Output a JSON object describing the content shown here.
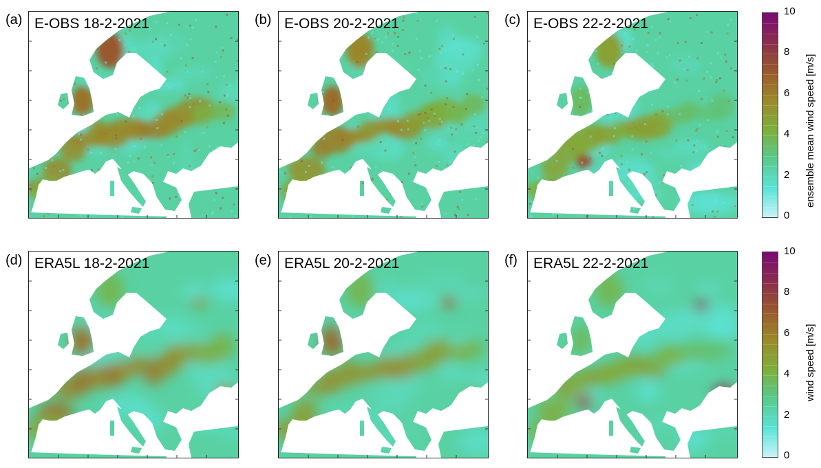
{
  "panels": [
    {
      "letter": "(a)",
      "title": "E-OBS 18-2-2021",
      "dataset": "E-OBS",
      "variant": 0
    },
    {
      "letter": "(b)",
      "title": "E-OBS 20-2-2021",
      "dataset": "E-OBS",
      "variant": 1
    },
    {
      "letter": "(c)",
      "title": "E-OBS 22-2-2021",
      "dataset": "E-OBS",
      "variant": 2
    },
    {
      "letter": "(d)",
      "title": "ERA5L 18-2-2021",
      "dataset": "ERA5L",
      "variant": 0
    },
    {
      "letter": "(e)",
      "title": "ERA5L 20-2-2021",
      "dataset": "ERA5L",
      "variant": 1
    },
    {
      "letter": "(f)",
      "title": "ERA5L 22-2-2021",
      "dataset": "ERA5L",
      "variant": 2
    }
  ],
  "colorbars": [
    {
      "label": "ensemble mean wind speed [m/s]",
      "ticks": [
        "10",
        "8",
        "6",
        "4",
        "2",
        "0"
      ],
      "min": 0,
      "max": 10
    },
    {
      "label": "wind speed [m/s]",
      "ticks": [
        "10",
        "8",
        "6",
        "4",
        "2",
        "0"
      ],
      "min": 0,
      "max": 10
    }
  ],
  "colors": {
    "scale": [
      "#c8f2f8",
      "#5ce3d8",
      "#58c98a",
      "#7fae3a",
      "#9a8a2a",
      "#9a5a2c",
      "#8a2c50",
      "#7a0a72"
    ]
  }
}
